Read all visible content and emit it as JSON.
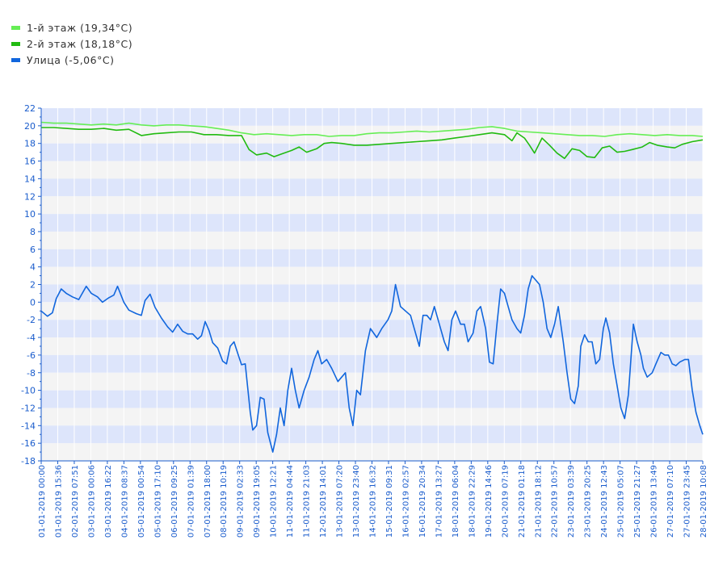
{
  "chart_data": {
    "type": "line",
    "legend_position": "top-left",
    "grid": true,
    "ylim": [
      -18,
      22
    ],
    "yticks": [
      22,
      20,
      18,
      16,
      14,
      12,
      10,
      8,
      6,
      4,
      2,
      0,
      -2,
      -4,
      -6,
      -8,
      -10,
      -12,
      -14,
      -16,
      -18
    ],
    "xlim": [
      0,
      26.42
    ],
    "x_tick_labels": [
      "01-01-2019 00:00",
      "01-01-2019 15:36",
      "02-01-2019 07:51",
      "03-01-2019 00:06",
      "03-01-2019 16:22",
      "04-01-2019 08:37",
      "05-01-2019 00:54",
      "05-01-2019 17:10",
      "06-01-2019 09:25",
      "07-01-2019 01:39",
      "07-01-2019 18:00",
      "08-01-2019 10:19",
      "09-01-2019 02:33",
      "09-01-2019 19:05",
      "10-01-2019 12:21",
      "11-01-2019 04:44",
      "11-01-2019 21:03",
      "12-01-2019 14:01",
      "13-01-2019 07:20",
      "13-01-2019 23:40",
      "14-01-2019 16:32",
      "15-01-2019 09:31",
      "16-01-2019 02:57",
      "16-01-2019 20:34",
      "17-01-2019 13:27",
      "18-01-2019 06:04",
      "18-01-2019 22:29",
      "19-01-2019 14:46",
      "20-01-2019 07:19",
      "21-01-2019 01:18",
      "21-01-2019 18:12",
      "22-01-2019 10:57",
      "23-01-2019 03:39",
      "23-01-2019 20:25",
      "24-01-2019 12:43",
      "25-01-2019 05:07",
      "25-01-2019 21:27",
      "26-01-2019 13:49",
      "27-01-2019 07:10",
      "27-01-2019 23:45",
      "28-01-2019 10:08"
    ],
    "series": [
      {
        "name": "1-й этаж (19,34°C)",
        "color": "#66ee55",
        "points": [
          [
            0,
            20.4
          ],
          [
            0.5,
            20.3
          ],
          [
            1,
            20.3
          ],
          [
            1.5,
            20.2
          ],
          [
            2,
            20.1
          ],
          [
            2.5,
            20.2
          ],
          [
            3,
            20.1
          ],
          [
            3.5,
            20.3
          ],
          [
            4,
            20.1
          ],
          [
            4.5,
            20.0
          ],
          [
            5,
            20.1
          ],
          [
            5.5,
            20.1
          ],
          [
            6,
            20.0
          ],
          [
            6.5,
            19.9
          ],
          [
            7,
            19.7
          ],
          [
            7.5,
            19.5
          ],
          [
            8,
            19.2
          ],
          [
            8.5,
            19.0
          ],
          [
            9,
            19.1
          ],
          [
            9.5,
            19.0
          ],
          [
            10,
            18.9
          ],
          [
            10.5,
            19.0
          ],
          [
            11,
            19.0
          ],
          [
            11.5,
            18.8
          ],
          [
            12,
            18.9
          ],
          [
            12.5,
            18.9
          ],
          [
            13,
            19.1
          ],
          [
            13.5,
            19.2
          ],
          [
            14,
            19.2
          ],
          [
            14.5,
            19.3
          ],
          [
            15,
            19.4
          ],
          [
            15.5,
            19.3
          ],
          [
            16,
            19.4
          ],
          [
            16.5,
            19.5
          ],
          [
            17,
            19.6
          ],
          [
            17.5,
            19.8
          ],
          [
            18,
            19.9
          ],
          [
            18.5,
            19.7
          ],
          [
            19,
            19.4
          ],
          [
            19.5,
            19.3
          ],
          [
            20,
            19.2
          ],
          [
            20.5,
            19.1
          ],
          [
            21,
            19.0
          ],
          [
            21.5,
            18.9
          ],
          [
            22,
            18.9
          ],
          [
            22.5,
            18.8
          ],
          [
            23,
            19.0
          ],
          [
            23.5,
            19.1
          ],
          [
            24,
            19.0
          ],
          [
            24.5,
            18.9
          ],
          [
            25,
            19.0
          ],
          [
            25.5,
            18.9
          ],
          [
            26,
            18.9
          ],
          [
            26.42,
            18.8
          ]
        ]
      },
      {
        "name": "2-й этаж (18,18°C)",
        "color": "#22bb11",
        "points": [
          [
            0,
            19.8
          ],
          [
            0.5,
            19.8
          ],
          [
            1,
            19.7
          ],
          [
            1.5,
            19.6
          ],
          [
            2,
            19.6
          ],
          [
            2.5,
            19.7
          ],
          [
            3,
            19.5
          ],
          [
            3.5,
            19.6
          ],
          [
            4,
            18.9
          ],
          [
            4.5,
            19.1
          ],
          [
            5,
            19.2
          ],
          [
            5.5,
            19.3
          ],
          [
            6,
            19.3
          ],
          [
            6.5,
            19.0
          ],
          [
            7,
            19.0
          ],
          [
            7.5,
            18.9
          ],
          [
            8,
            18.9
          ],
          [
            8.3,
            17.3
          ],
          [
            8.6,
            16.7
          ],
          [
            9,
            16.9
          ],
          [
            9.3,
            16.5
          ],
          [
            9.6,
            16.8
          ],
          [
            10,
            17.2
          ],
          [
            10.3,
            17.6
          ],
          [
            10.6,
            17.0
          ],
          [
            11,
            17.4
          ],
          [
            11.3,
            18.0
          ],
          [
            11.6,
            18.1
          ],
          [
            12,
            18.0
          ],
          [
            12.5,
            17.8
          ],
          [
            13,
            17.8
          ],
          [
            13.5,
            17.9
          ],
          [
            14,
            18.0
          ],
          [
            14.5,
            18.1
          ],
          [
            15,
            18.2
          ],
          [
            15.5,
            18.3
          ],
          [
            16,
            18.4
          ],
          [
            16.5,
            18.6
          ],
          [
            17,
            18.8
          ],
          [
            17.5,
            19.0
          ],
          [
            18,
            19.2
          ],
          [
            18.5,
            19.0
          ],
          [
            18.8,
            18.3
          ],
          [
            19,
            19.2
          ],
          [
            19.3,
            18.6
          ],
          [
            19.5,
            17.8
          ],
          [
            19.7,
            16.9
          ],
          [
            20,
            18.6
          ],
          [
            20.3,
            17.8
          ],
          [
            20.6,
            16.9
          ],
          [
            20.9,
            16.3
          ],
          [
            21.2,
            17.4
          ],
          [
            21.5,
            17.2
          ],
          [
            21.8,
            16.5
          ],
          [
            22.1,
            16.4
          ],
          [
            22.4,
            17.5
          ],
          [
            22.7,
            17.7
          ],
          [
            23,
            17.0
          ],
          [
            23.3,
            17.1
          ],
          [
            23.6,
            17.3
          ],
          [
            24,
            17.6
          ],
          [
            24.3,
            18.1
          ],
          [
            24.6,
            17.8
          ],
          [
            25,
            17.6
          ],
          [
            25.3,
            17.5
          ],
          [
            25.6,
            17.9
          ],
          [
            26,
            18.2
          ],
          [
            26.42,
            18.4
          ]
        ]
      },
      {
        "name": "Улица (-5,06°C)",
        "color": "#1166dd",
        "points": [
          [
            0,
            -1.0
          ],
          [
            0.25,
            -1.6
          ],
          [
            0.45,
            -1.2
          ],
          [
            0.6,
            0.4
          ],
          [
            0.8,
            1.5
          ],
          [
            1.0,
            1.0
          ],
          [
            1.25,
            0.6
          ],
          [
            1.5,
            0.3
          ],
          [
            1.6,
            0.8
          ],
          [
            1.8,
            1.8
          ],
          [
            2.0,
            1.0
          ],
          [
            2.25,
            0.6
          ],
          [
            2.45,
            0.0
          ],
          [
            2.7,
            0.5
          ],
          [
            2.9,
            0.8
          ],
          [
            3.05,
            1.8
          ],
          [
            3.3,
            0.0
          ],
          [
            3.5,
            -0.9
          ],
          [
            3.8,
            -1.3
          ],
          [
            4.0,
            -1.5
          ],
          [
            4.15,
            0.2
          ],
          [
            4.35,
            0.9
          ],
          [
            4.55,
            -0.6
          ],
          [
            4.8,
            -1.8
          ],
          [
            5.05,
            -2.8
          ],
          [
            5.25,
            -3.4
          ],
          [
            5.45,
            -2.5
          ],
          [
            5.65,
            -3.3
          ],
          [
            5.85,
            -3.6
          ],
          [
            6.05,
            -3.6
          ],
          [
            6.25,
            -4.2
          ],
          [
            6.4,
            -3.8
          ],
          [
            6.55,
            -2.2
          ],
          [
            6.7,
            -3.2
          ],
          [
            6.85,
            -4.6
          ],
          [
            7.05,
            -5.2
          ],
          [
            7.25,
            -6.7
          ],
          [
            7.4,
            -7.0
          ],
          [
            7.55,
            -5.0
          ],
          [
            7.7,
            -4.5
          ],
          [
            7.85,
            -5.8
          ],
          [
            8.0,
            -7.1
          ],
          [
            8.15,
            -7.0
          ],
          [
            8.35,
            -12.5
          ],
          [
            8.45,
            -14.5
          ],
          [
            8.6,
            -14.0
          ],
          [
            8.75,
            -10.8
          ],
          [
            8.9,
            -11.0
          ],
          [
            9.05,
            -14.8
          ],
          [
            9.25,
            -17.0
          ],
          [
            9.4,
            -15.0
          ],
          [
            9.55,
            -12.0
          ],
          [
            9.7,
            -14.0
          ],
          [
            9.85,
            -10.0
          ],
          [
            10.0,
            -7.5
          ],
          [
            10.15,
            -10.0
          ],
          [
            10.3,
            -12.0
          ],
          [
            10.5,
            -10.0
          ],
          [
            10.7,
            -8.5
          ],
          [
            10.9,
            -6.5
          ],
          [
            11.05,
            -5.5
          ],
          [
            11.2,
            -7.0
          ],
          [
            11.4,
            -6.5
          ],
          [
            11.6,
            -7.5
          ],
          [
            11.85,
            -9.0
          ],
          [
            12.0,
            -8.5
          ],
          [
            12.15,
            -8.0
          ],
          [
            12.3,
            -12.0
          ],
          [
            12.45,
            -14.0
          ],
          [
            12.6,
            -10.0
          ],
          [
            12.75,
            -10.5
          ],
          [
            12.95,
            -5.5
          ],
          [
            13.15,
            -3.0
          ],
          [
            13.4,
            -4.0
          ],
          [
            13.6,
            -3.0
          ],
          [
            13.85,
            -2.0
          ],
          [
            14.0,
            -1.0
          ],
          [
            14.15,
            2.0
          ],
          [
            14.35,
            -0.5
          ],
          [
            14.55,
            -1.0
          ],
          [
            14.75,
            -1.5
          ],
          [
            14.95,
            -3.5
          ],
          [
            15.1,
            -5.0
          ],
          [
            15.25,
            -1.5
          ],
          [
            15.4,
            -1.5
          ],
          [
            15.55,
            -2.0
          ],
          [
            15.7,
            -0.5
          ],
          [
            15.9,
            -2.5
          ],
          [
            16.1,
            -4.5
          ],
          [
            16.25,
            -5.5
          ],
          [
            16.4,
            -2.0
          ],
          [
            16.55,
            -1.0
          ],
          [
            16.75,
            -2.5
          ],
          [
            16.9,
            -2.5
          ],
          [
            17.05,
            -4.5
          ],
          [
            17.25,
            -3.5
          ],
          [
            17.4,
            -1.0
          ],
          [
            17.55,
            -0.5
          ],
          [
            17.75,
            -3.0
          ],
          [
            17.9,
            -6.8
          ],
          [
            18.05,
            -7.0
          ],
          [
            18.2,
            -2.5
          ],
          [
            18.35,
            1.5
          ],
          [
            18.5,
            1.0
          ],
          [
            18.65,
            -0.5
          ],
          [
            18.8,
            -2.0
          ],
          [
            19.0,
            -3.0
          ],
          [
            19.15,
            -3.5
          ],
          [
            19.3,
            -1.5
          ],
          [
            19.45,
            1.5
          ],
          [
            19.6,
            3.0
          ],
          [
            19.75,
            2.5
          ],
          [
            19.9,
            2.0
          ],
          [
            20.05,
            0.0
          ],
          [
            20.2,
            -3.0
          ],
          [
            20.35,
            -4.0
          ],
          [
            20.5,
            -2.5
          ],
          [
            20.65,
            -0.5
          ],
          [
            20.85,
            -4.5
          ],
          [
            21.0,
            -8.0
          ],
          [
            21.15,
            -11.0
          ],
          [
            21.3,
            -11.5
          ],
          [
            21.45,
            -9.5
          ],
          [
            21.55,
            -5.0
          ],
          [
            21.7,
            -3.7
          ],
          [
            21.85,
            -4.5
          ],
          [
            22.0,
            -4.5
          ],
          [
            22.15,
            -7.0
          ],
          [
            22.3,
            -6.5
          ],
          [
            22.45,
            -3.0
          ],
          [
            22.55,
            -1.8
          ],
          [
            22.7,
            -3.5
          ],
          [
            22.85,
            -7.0
          ],
          [
            23.0,
            -9.5
          ],
          [
            23.15,
            -12.0
          ],
          [
            23.3,
            -13.2
          ],
          [
            23.45,
            -10.5
          ],
          [
            23.55,
            -6.5
          ],
          [
            23.65,
            -2.5
          ],
          [
            23.8,
            -4.5
          ],
          [
            23.95,
            -6.0
          ],
          [
            24.05,
            -7.5
          ],
          [
            24.2,
            -8.5
          ],
          [
            24.4,
            -8.0
          ],
          [
            24.55,
            -7.0
          ],
          [
            24.75,
            -5.7
          ],
          [
            24.9,
            -6.0
          ],
          [
            25.05,
            -6.0
          ],
          [
            25.2,
            -7.0
          ],
          [
            25.35,
            -7.2
          ],
          [
            25.5,
            -6.8
          ],
          [
            25.7,
            -6.5
          ],
          [
            25.85,
            -6.5
          ],
          [
            26.0,
            -10.0
          ]
        ]
      }
    ],
    "series_tail": [
      [
        26.0,
        -10.0
      ],
      [
        26.15,
        -12.5
      ],
      [
        26.3,
        -14.0
      ],
      [
        26.42,
        -15.0
      ]
    ]
  }
}
